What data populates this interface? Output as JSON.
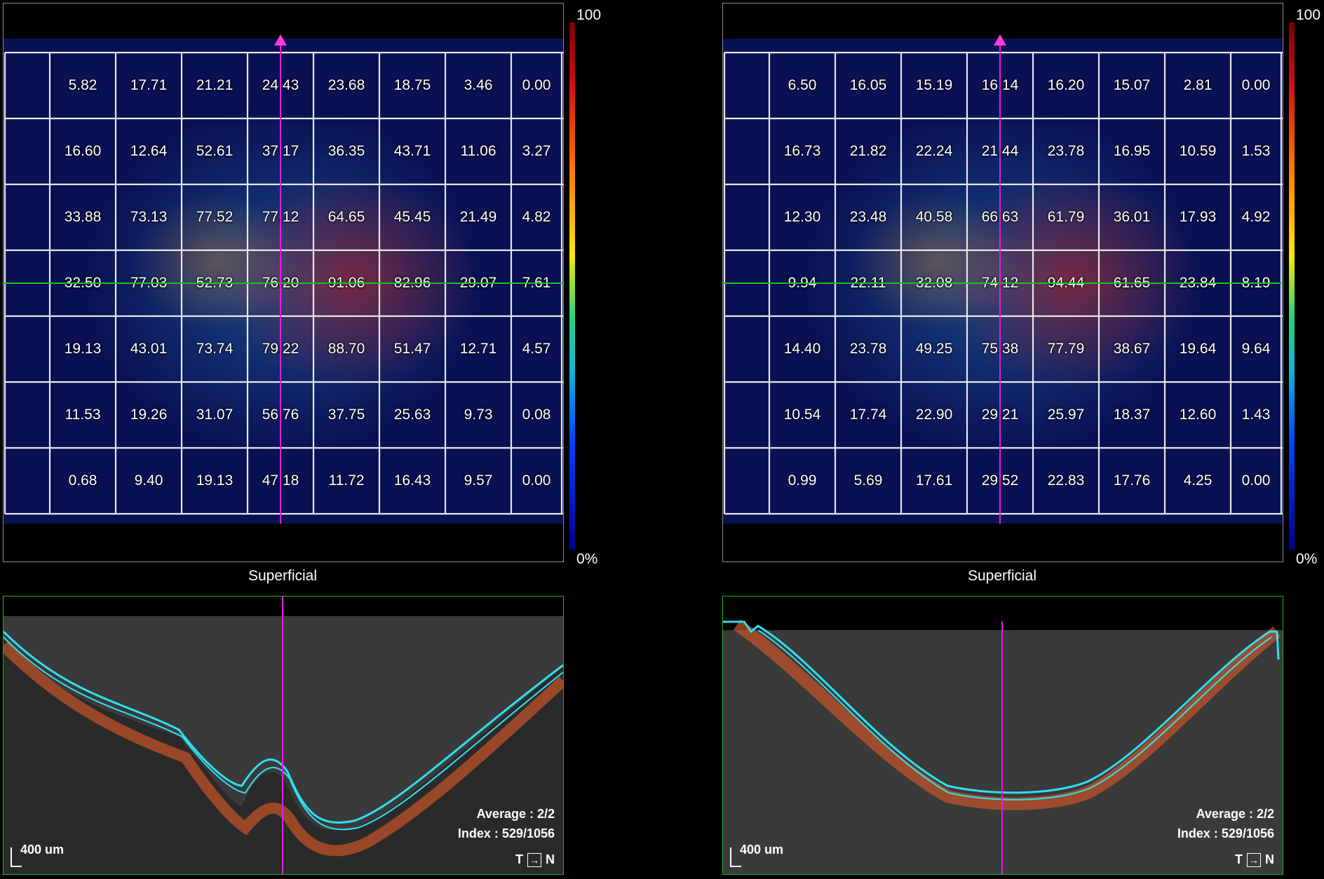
{
  "colorbar": {
    "max_label": "100",
    "min_label": "0%"
  },
  "left": {
    "section_label": "Superficial",
    "grid_values": [
      [
        "5.82",
        "17.71",
        "21.21",
        "24.43",
        "23.68",
        "18.75",
        "3.46",
        "0.00"
      ],
      [
        "16.60",
        "12.64",
        "52.61",
        "37.17",
        "36.35",
        "43.71",
        "11.06",
        "3.27"
      ],
      [
        "33.88",
        "73.13",
        "77.52",
        "77.12",
        "64.65",
        "45.45",
        "21.49",
        "4.82"
      ],
      [
        "32.50",
        "77.03",
        "52.73",
        "76.20",
        "91.06",
        "82.96",
        "29.07",
        "7.61"
      ],
      [
        "19.13",
        "43.01",
        "73.74",
        "79.22",
        "88.70",
        "51.47",
        "12.71",
        "4.57"
      ],
      [
        "11.53",
        "19.26",
        "31.07",
        "56.76",
        "37.75",
        "25.63",
        "9.73",
        "0.08"
      ],
      [
        "0.68",
        "9.40",
        "19.13",
        "47.18",
        "11.72",
        "16.43",
        "9.57",
        "0.00"
      ]
    ],
    "bscan": {
      "average": "Average : 2/2",
      "index": "Index : 529/1056",
      "scale": "400 um",
      "dir_t": "T",
      "dir_n": "N"
    }
  },
  "right": {
    "section_label": "Superficial",
    "grid_values": [
      [
        "6.50",
        "16.05",
        "15.19",
        "16.14",
        "16.20",
        "15.07",
        "2.81",
        "0.00"
      ],
      [
        "16.73",
        "21.82",
        "22.24",
        "21.44",
        "23.78",
        "16.95",
        "10.59",
        "1.53"
      ],
      [
        "12.30",
        "23.48",
        "40.58",
        "66.63",
        "61.79",
        "36.01",
        "17.93",
        "4.92"
      ],
      [
        "9.94",
        "22.11",
        "32.08",
        "74.12",
        "94.44",
        "61.65",
        "23.84",
        "8.19"
      ],
      [
        "14.40",
        "23.78",
        "49.25",
        "75.38",
        "77.79",
        "38.67",
        "19.64",
        "9.64"
      ],
      [
        "10.54",
        "17.74",
        "22.90",
        "29.21",
        "25.97",
        "18.37",
        "12.60",
        "1.43"
      ],
      [
        "0.99",
        "5.69",
        "17.61",
        "29.52",
        "22.83",
        "17.76",
        "4.25",
        "0.00"
      ]
    ],
    "bscan": {
      "average": "Average : 2/2",
      "index": "Index : 529/1056",
      "scale": "400 um",
      "dir_t": "T",
      "dir_n": "N"
    }
  },
  "colors": {
    "grid_line": "#e8e8e8",
    "horizontal_marker": "#19c419",
    "vertical_marker": "#e020e0",
    "bscan_border": "#19b819",
    "segmentation_line": "#2fe0ef"
  }
}
